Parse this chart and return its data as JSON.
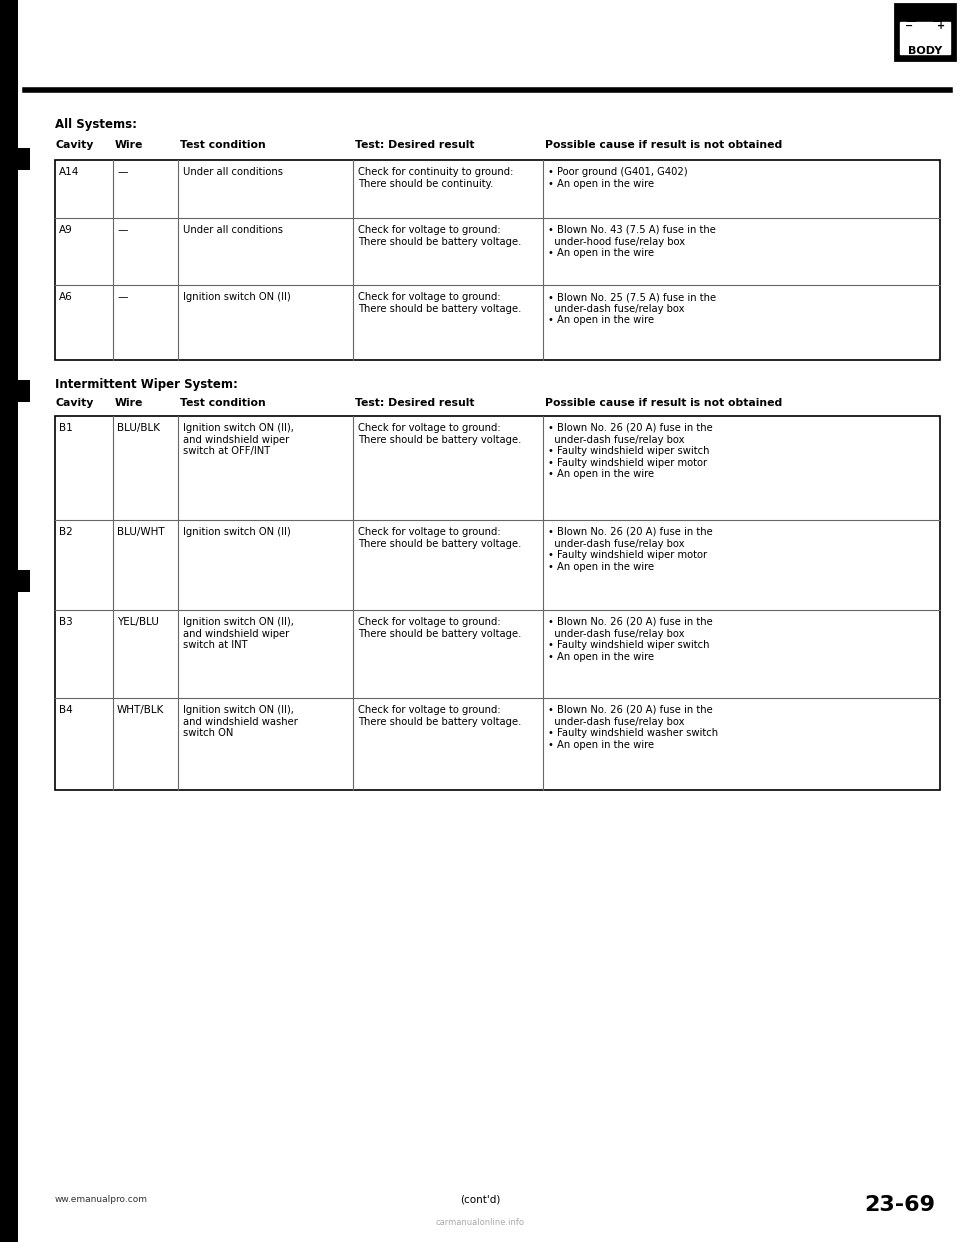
{
  "page_bg": "#ffffff",
  "section1_title": "All Systems:",
  "section2_title": "Intermittent Wiper System:",
  "header_cols": [
    "Cavity",
    "Wire",
    "Test condition",
    "Test: Desired result",
    "Possible cause if result is not obtained"
  ],
  "table1_rows": [
    {
      "cavity": "A14",
      "wire": "—",
      "test_condition": "Under all conditions",
      "desired_result": "Check for continuity to ground:\nThere should be continuity.",
      "possible_cause": "• Poor ground (G401, G402)\n• An open in the wire"
    },
    {
      "cavity": "A9",
      "wire": "—",
      "test_condition": "Under all conditions",
      "desired_result": "Check for voltage to ground:\nThere should be battery voltage.",
      "possible_cause": "• Blown No. 43 (7.5 A) fuse in the\n  under-hood fuse/relay box\n• An open in the wire"
    },
    {
      "cavity": "A6",
      "wire": "—",
      "test_condition": "Ignition switch ON (II)",
      "desired_result": "Check for voltage to ground:\nThere should be battery voltage.",
      "possible_cause": "• Blown No. 25 (7.5 A) fuse in the\n  under-dash fuse/relay box\n• An open in the wire"
    }
  ],
  "table2_rows": [
    {
      "cavity": "B1",
      "wire": "BLU/BLK",
      "test_condition": "Ignition switch ON (II),\nand windshield wiper\nswitch at OFF/INT",
      "desired_result": "Check for voltage to ground:\nThere should be battery voltage.",
      "possible_cause": "• Blown No. 26 (20 A) fuse in the\n  under-dash fuse/relay box\n• Faulty windshield wiper switch\n• Faulty windshield wiper motor\n• An open in the wire"
    },
    {
      "cavity": "B2",
      "wire": "BLU/WHT",
      "test_condition": "Ignition switch ON (II)",
      "desired_result": "Check for voltage to ground:\nThere should be battery voltage.",
      "possible_cause": "• Blown No. 26 (20 A) fuse in the\n  under-dash fuse/relay box\n• Faulty windshield wiper motor\n• An open in the wire"
    },
    {
      "cavity": "B3",
      "wire": "YEL/BLU",
      "test_condition": "Ignition switch ON (II),\nand windshield wiper\nswitch at INT",
      "desired_result": "Check for voltage to ground:\nThere should be battery voltage.",
      "possible_cause": "• Blown No. 26 (20 A) fuse in the\n  under-dash fuse/relay box\n• Faulty windshield wiper switch\n• An open in the wire"
    },
    {
      "cavity": "B4",
      "wire": "WHT/BLK",
      "test_condition": "Ignition switch ON (II),\nand windshield washer\nswitch ON",
      "desired_result": "Check for voltage to ground:\nThere should be battery voltage.",
      "possible_cause": "• Blown No. 26 (20 A) fuse in the\n  under-dash fuse/relay box\n• Faulty windshield washer switch\n• An open in the wire"
    }
  ],
  "footer_left": "ww.emanualpro.com",
  "footer_right": "23-69",
  "footer_center": "(cont'd)",
  "footer_watermark": "carmanualonline.info"
}
